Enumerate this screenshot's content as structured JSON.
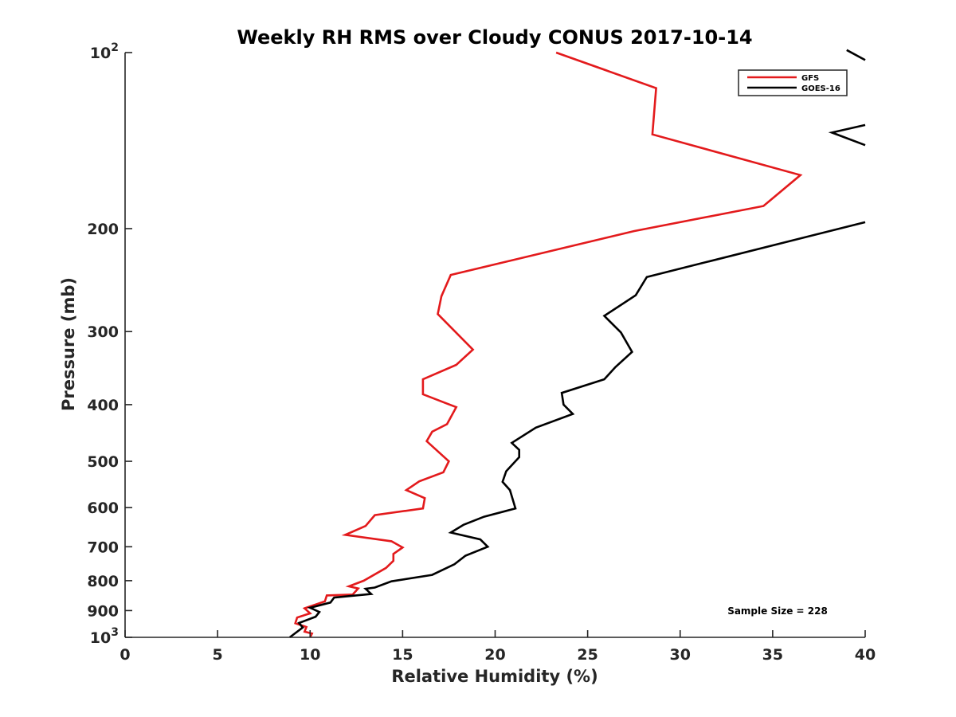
{
  "chart_data": {
    "type": "line",
    "title": "Weekly RH RMS over Cloudy CONUS 2017-10-14",
    "xlabel": "Relative Humidity (%)",
    "ylabel": "Pressure (mb)",
    "xlim": [
      0,
      40
    ],
    "ylim": [
      100,
      1000
    ],
    "yscale": "log",
    "y_reversed": true,
    "grid": false,
    "legend_position": "top-right",
    "x_ticks": [
      {
        "value": 0,
        "label": "0"
      },
      {
        "value": 5,
        "label": "5"
      },
      {
        "value": 10,
        "label": "10"
      },
      {
        "value": 15,
        "label": "15"
      },
      {
        "value": 20,
        "label": "20"
      },
      {
        "value": 25,
        "label": "25"
      },
      {
        "value": 30,
        "label": "30"
      },
      {
        "value": 35,
        "label": "35"
      },
      {
        "value": 40,
        "label": "40"
      }
    ],
    "y_ticks": [
      {
        "value": 100,
        "label": "10",
        "sup": "2"
      },
      {
        "value": 200,
        "label": "200",
        "sup": ""
      },
      {
        "value": 300,
        "label": "300",
        "sup": ""
      },
      {
        "value": 400,
        "label": "400",
        "sup": ""
      },
      {
        "value": 500,
        "label": "500",
        "sup": ""
      },
      {
        "value": 600,
        "label": "600",
        "sup": ""
      },
      {
        "value": 700,
        "label": "700",
        "sup": ""
      },
      {
        "value": 800,
        "label": "800",
        "sup": ""
      },
      {
        "value": 900,
        "label": "900",
        "sup": ""
      },
      {
        "value": 1000,
        "label": "10",
        "sup": "3"
      }
    ],
    "annotation": "Sample Size = 228",
    "series": [
      {
        "name": "GFS",
        "color": "#e31a1c",
        "points": [
          [
            23.3,
            100
          ],
          [
            28.7,
            115
          ],
          [
            28.5,
            138
          ],
          [
            36.5,
            162
          ],
          [
            34.5,
            183
          ],
          [
            27.5,
            202
          ],
          [
            17.6,
            240
          ],
          [
            17.1,
            261
          ],
          [
            16.9,
            280
          ],
          [
            18.8,
            322
          ],
          [
            17.9,
            342
          ],
          [
            16.1,
            362
          ],
          [
            16.1,
            384
          ],
          [
            17.9,
            404
          ],
          [
            17.4,
            432
          ],
          [
            16.6,
            445
          ],
          [
            16.3,
            462
          ],
          [
            17.5,
            500
          ],
          [
            17.2,
            522
          ],
          [
            15.9,
            541
          ],
          [
            15.2,
            560
          ],
          [
            16.2,
            578
          ],
          [
            16.1,
            602
          ],
          [
            13.5,
            618
          ],
          [
            13.0,
            645
          ],
          [
            11.9,
            668
          ],
          [
            14.4,
            685
          ],
          [
            15.0,
            702
          ],
          [
            14.5,
            720
          ],
          [
            14.5,
            740
          ],
          [
            14.1,
            761
          ],
          [
            12.9,
            800
          ],
          [
            12.1,
            818
          ],
          [
            12.6,
            825
          ],
          [
            12.3,
            845
          ],
          [
            10.9,
            848
          ],
          [
            10.8,
            868
          ],
          [
            9.7,
            892
          ],
          [
            10.0,
            910
          ],
          [
            9.3,
            925
          ],
          [
            9.2,
            946
          ],
          [
            9.8,
            960
          ],
          [
            9.7,
            978
          ],
          [
            10.1,
            985
          ],
          [
            10.0,
            1000
          ]
        ]
      },
      {
        "name": "GOES-16",
        "color": "#000000",
        "points": [
          [
            40.0,
            195
          ],
          [
            28.2,
            242
          ],
          [
            27.6,
            260
          ],
          [
            25.9,
            282
          ],
          [
            26.8,
            301
          ],
          [
            27.4,
            325
          ],
          [
            26.5,
            345
          ],
          [
            25.9,
            362
          ],
          [
            23.6,
            382
          ],
          [
            23.7,
            400
          ],
          [
            24.2,
            415
          ],
          [
            22.2,
            438
          ],
          [
            20.9,
            465
          ],
          [
            21.3,
            478
          ],
          [
            21.3,
            492
          ],
          [
            20.6,
            520
          ],
          [
            20.4,
            542
          ],
          [
            20.8,
            560
          ],
          [
            21.1,
            602
          ],
          [
            19.4,
            622
          ],
          [
            18.3,
            642
          ],
          [
            17.6,
            662
          ],
          [
            19.2,
            680
          ],
          [
            19.6,
            700
          ],
          [
            18.4,
            725
          ],
          [
            17.8,
            750
          ],
          [
            16.6,
            782
          ],
          [
            14.4,
            802
          ],
          [
            13.5,
            822
          ],
          [
            13.0,
            826
          ],
          [
            13.3,
            843
          ],
          [
            11.3,
            855
          ],
          [
            11.1,
            872
          ],
          [
            10.0,
            890
          ],
          [
            10.5,
            905
          ],
          [
            10.3,
            922
          ],
          [
            9.4,
            945
          ],
          [
            9.6,
            962
          ],
          [
            8.9,
            1000
          ]
        ]
      },
      {
        "name": "",
        "color": "#000000",
        "points": [
          [
            39.0,
            99
          ],
          [
            40.0,
            103
          ]
        ]
      },
      {
        "name": "",
        "color": "#000000",
        "points": [
          [
            40.0,
            133
          ],
          [
            38.2,
            137
          ],
          [
            40.0,
            144
          ]
        ]
      }
    ]
  }
}
